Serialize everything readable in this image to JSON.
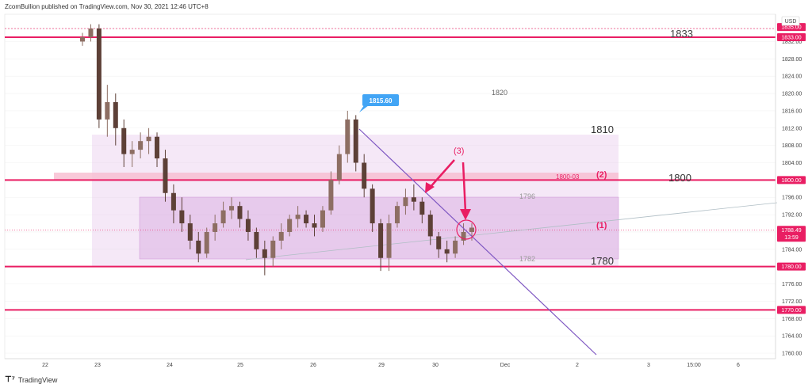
{
  "header": {
    "publisher_text": "ZcomBullion published on TradingView.com, Nov 30, 2021 12:46 UTC+8"
  },
  "footer": {
    "brand": "TradingView"
  },
  "chart_data": {
    "type": "candlestick",
    "currency": "USD",
    "y_ticks": [
      1760,
      1764,
      1768,
      1772,
      1776,
      1780,
      1784,
      1788,
      1792,
      1796,
      1800,
      1804,
      1808,
      1812,
      1816,
      1820,
      1824,
      1828,
      1832,
      1835
    ],
    "x_ticks": [
      "22",
      "23",
      "24",
      "25",
      "26",
      "29",
      "30",
      "Dec",
      "2",
      "3",
      "15:00",
      "6"
    ],
    "price_tags": [
      {
        "label": "1835.00",
        "value": 1835.0,
        "color": "#e91e63"
      },
      {
        "label": "1833.00",
        "value": 1833.0,
        "color": "#e91e63"
      },
      {
        "label": "1800.00",
        "value": 1800.0,
        "color": "#e91e63"
      },
      {
        "label": "1788.49",
        "value": 1788.49,
        "color": "#e91e63",
        "sub": "13:59"
      },
      {
        "label": "1780.00",
        "value": 1780.0,
        "color": "#e91e63"
      },
      {
        "label": "1770.00",
        "value": 1770.0,
        "color": "#e91e63"
      }
    ],
    "horizontal_lines": [
      1835,
      1833,
      1800,
      1780,
      1770
    ],
    "annotations": {
      "high_callout": "1815.60",
      "level_1833": "1833",
      "level_1820": "1820",
      "level_1810": "1810",
      "level_1800": "1800",
      "label_1800_03": "1800-03",
      "label_2": "(2)",
      "label_3": "(3)",
      "label_1": "(1)",
      "level_1796": "1796",
      "level_1782": "1782",
      "level_1780": "1780"
    },
    "colors": {
      "accent": "#e91e63",
      "trendline": "#7e57c2",
      "callout": "#42a5f5",
      "up": "#8d6e63",
      "down": "#5d4037"
    },
    "candles": [
      [
        1832,
        1834,
        1831,
        1833
      ],
      [
        1833,
        1836,
        1832,
        1835
      ],
      [
        1835,
        1836,
        1812,
        1814
      ],
      [
        1814,
        1822,
        1810,
        1818
      ],
      [
        1818,
        1820,
        1808,
        1812
      ],
      [
        1812,
        1814,
        1803,
        1806
      ],
      [
        1806,
        1809,
        1803,
        1807
      ],
      [
        1807,
        1811,
        1805,
        1809
      ],
      [
        1809,
        1812,
        1806,
        1810
      ],
      [
        1810,
        1811,
        1803,
        1805
      ],
      [
        1805,
        1807,
        1795,
        1797
      ],
      [
        1797,
        1799,
        1790,
        1793
      ],
      [
        1793,
        1796,
        1788,
        1790
      ],
      [
        1790,
        1792,
        1784,
        1786
      ],
      [
        1786,
        1788,
        1781,
        1783
      ],
      [
        1783,
        1789,
        1782,
        1788
      ],
      [
        1788,
        1792,
        1786,
        1790
      ],
      [
        1790,
        1795,
        1789,
        1793
      ],
      [
        1793,
        1796,
        1791,
        1794
      ],
      [
        1794,
        1795,
        1789,
        1791
      ],
      [
        1791,
        1793,
        1786,
        1788
      ],
      [
        1788,
        1789,
        1782,
        1784
      ],
      [
        1784,
        1786,
        1778,
        1782
      ],
      [
        1782,
        1787,
        1780,
        1786
      ],
      [
        1786,
        1790,
        1784,
        1788
      ],
      [
        1788,
        1792,
        1787,
        1791
      ],
      [
        1791,
        1794,
        1789,
        1792
      ],
      [
        1792,
        1793,
        1789,
        1790
      ],
      [
        1790,
        1792,
        1787,
        1789
      ],
      [
        1789,
        1794,
        1788,
        1793
      ],
      [
        1793,
        1802,
        1792,
        1800
      ],
      [
        1800,
        1808,
        1799,
        1806
      ],
      [
        1806,
        1816,
        1804,
        1814
      ],
      [
        1814,
        1815,
        1802,
        1804
      ],
      [
        1804,
        1806,
        1796,
        1798
      ],
      [
        1798,
        1799,
        1788,
        1790
      ],
      [
        1790,
        1791,
        1779,
        1782
      ],
      [
        1782,
        1792,
        1779,
        1790
      ],
      [
        1790,
        1795,
        1789,
        1794
      ],
      [
        1794,
        1798,
        1792,
        1796
      ],
      [
        1796,
        1799,
        1793,
        1795
      ],
      [
        1795,
        1796,
        1790,
        1792
      ],
      [
        1792,
        1793,
        1785,
        1787
      ],
      [
        1787,
        1788,
        1782,
        1784
      ],
      [
        1784,
        1786,
        1781,
        1783
      ],
      [
        1783,
        1787,
        1782,
        1786
      ],
      [
        1786,
        1790,
        1785,
        1788
      ],
      [
        1788,
        1790,
        1786,
        1789
      ]
    ]
  }
}
